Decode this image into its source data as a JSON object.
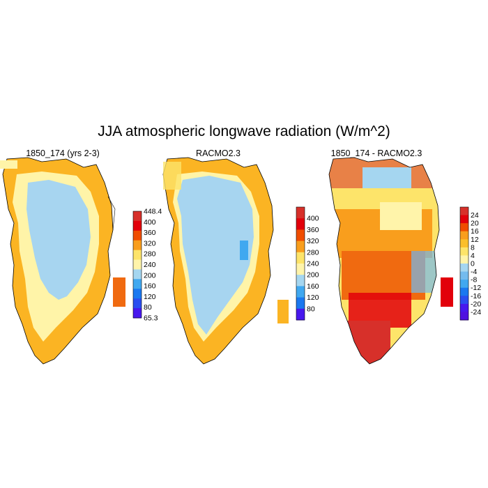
{
  "title": "JJA atmospheric longwave radiation (W/m^2)",
  "panels": [
    {
      "title": "1850_174 (yrs 2-3)",
      "colorbar": {
        "labels": [
          "448.4",
          "400",
          "360",
          "320",
          "280",
          "240",
          "200",
          "160",
          "120",
          "80",
          "65.3"
        ],
        "colors": [
          "#d7302a",
          "#e2000b",
          "#f04d00",
          "#f99e1d",
          "#fde46a",
          "#fff4aa",
          "#a5d6f0",
          "#40a8f0",
          "#1a78f0",
          "#2a4ef0",
          "#4718ee"
        ]
      },
      "field": {
        "interior": "#a7d5f0",
        "inner_ring": "#fff4a8",
        "outer_ring": "#fbb423",
        "far_east": "#f06a10"
      }
    },
    {
      "title": "RACMO2.3",
      "colorbar": {
        "labels": [
          "400",
          "360",
          "320",
          "280",
          "240",
          "200",
          "160",
          "120",
          "80"
        ],
        "colors": [
          "#d7302a",
          "#e2000b",
          "#f04d00",
          "#f99e1d",
          "#fde46a",
          "#fff4aa",
          "#a5d6f0",
          "#40a8f0",
          "#1a78f0",
          "#4718ee"
        ]
      },
      "field": {
        "interior": "#a7d5f0",
        "inner_ring": "#fff4a8",
        "outer_ring": "#fbb423",
        "anomaly": "#40a8f0"
      }
    },
    {
      "title": "1850_174 - RACMO2.3",
      "colorbar": {
        "labels": [
          "24",
          "20",
          "16",
          "12",
          "8",
          "4",
          "0",
          "-4",
          "-8",
          "-12",
          "-16",
          "-20",
          "-24"
        ],
        "colors": [
          "#d7302a",
          "#e2000b",
          "#f04d00",
          "#f99e1d",
          "#fbbf2a",
          "#fde46a",
          "#fff4aa",
          "#a5d6f0",
          "#74bbee",
          "#40a8f0",
          "#1a78f0",
          "#2a4ef0",
          "#4718ee",
          "#5010e0"
        ]
      },
      "field": {
        "south": "#d7302a",
        "central": "#f06a10",
        "mid": "#f99e1d",
        "north": "#fde46a",
        "edge_blue": "#74bbee"
      }
    }
  ]
}
